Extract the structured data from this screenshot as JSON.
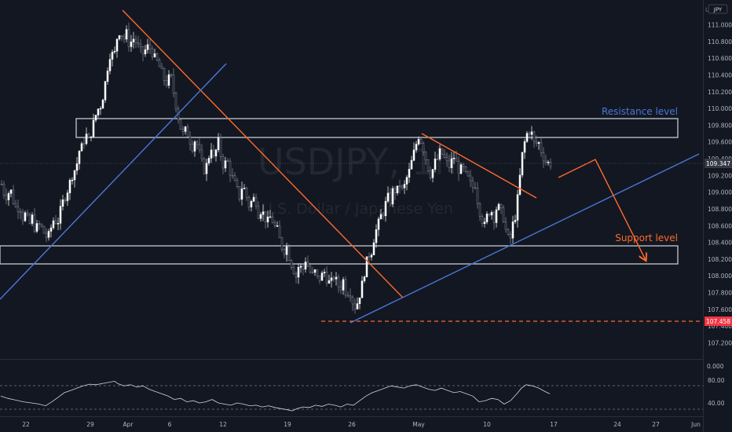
{
  "chart_data": {
    "type": "candlestick",
    "symbol_watermark": "USDJPY, 1h",
    "description_watermark": "U.S. Dollar / Japanese Yen",
    "currency": "JPY",
    "axis_mode": "L",
    "price_axis": {
      "ticks": [
        "111.000",
        "110.800",
        "110.600",
        "110.400",
        "110.200",
        "110.000",
        "109.800",
        "109.600",
        "109.400",
        "109.200",
        "109.000",
        "108.800",
        "108.600",
        "108.400",
        "108.200",
        "108.000",
        "107.800",
        "107.600",
        "107.400",
        "107.200"
      ],
      "range": [
        107.05,
        111.35
      ]
    },
    "time_axis": {
      "ticks": [
        "22",
        "29",
        "Apr",
        "6",
        "12",
        "19",
        "26",
        "May",
        "10",
        "17",
        "24",
        "27",
        "Jun"
      ]
    },
    "last_price": {
      "label": "109.347",
      "value": 109.347,
      "color": "#363a45"
    },
    "low_marker": {
      "label": "107.458",
      "value": 107.458,
      "color": "#f23645"
    },
    "annotations": {
      "resistance_label": "Resistance level",
      "support_label": "Support level",
      "resistance_zone": [
        109.66,
        109.89
      ],
      "support_zone": [
        108.14,
        108.36
      ],
      "resistance_color": "#4a78d8",
      "support_color": "#ff6a2b"
    },
    "price_path": [
      [
        1,
        109.1
      ],
      [
        4,
        109.0
      ],
      [
        8,
        108.95
      ],
      [
        12,
        109.05
      ],
      [
        16,
        108.9
      ],
      [
        20,
        108.8
      ],
      [
        24,
        108.85
      ],
      [
        28,
        108.7
      ],
      [
        32,
        108.75
      ],
      [
        36,
        108.6
      ],
      [
        40,
        108.7
      ],
      [
        44,
        108.55
      ],
      [
        48,
        108.62
      ],
      [
        52,
        108.58
      ],
      [
        56,
        108.5
      ],
      [
        60,
        108.45
      ],
      [
        64,
        108.58
      ],
      [
        68,
        108.7
      ],
      [
        72,
        108.62
      ],
      [
        76,
        108.78
      ],
      [
        80,
        108.92
      ],
      [
        84,
        109.0
      ],
      [
        88,
        109.12
      ],
      [
        92,
        109.24
      ],
      [
        96,
        109.3
      ],
      [
        100,
        109.5
      ],
      [
        104,
        109.55
      ],
      [
        108,
        109.7
      ],
      [
        112,
        109.62
      ],
      [
        116,
        109.75
      ],
      [
        120,
        109.9
      ],
      [
        124,
        110.0
      ],
      [
        128,
        110.05
      ],
      [
        132,
        110.25
      ],
      [
        136,
        110.5
      ],
      [
        140,
        110.7
      ],
      [
        144,
        110.6
      ],
      [
        148,
        110.85
      ],
      [
        152,
        110.95
      ],
      [
        156,
        110.82
      ],
      [
        160,
        110.9
      ],
      [
        164,
        110.75
      ],
      [
        168,
        110.85
      ],
      [
        172,
        110.8
      ],
      [
        176,
        110.72
      ],
      [
        180,
        110.65
      ],
      [
        184,
        110.7
      ],
      [
        188,
        110.75
      ],
      [
        192,
        110.7
      ],
      [
        196,
        110.6
      ],
      [
        200,
        110.55
      ],
      [
        204,
        110.45
      ],
      [
        208,
        110.35
      ],
      [
        212,
        110.3
      ],
      [
        216,
        110.42
      ],
      [
        220,
        110.2
      ],
      [
        224,
        110.0
      ],
      [
        228,
        109.8
      ],
      [
        232,
        109.7
      ],
      [
        236,
        109.75
      ],
      [
        240,
        109.65
      ],
      [
        244,
        109.55
      ],
      [
        248,
        109.65
      ],
      [
        252,
        109.5
      ],
      [
        256,
        109.35
      ],
      [
        260,
        109.25
      ],
      [
        264,
        109.4
      ],
      [
        268,
        109.55
      ],
      [
        272,
        109.35
      ],
      [
        276,
        109.65
      ],
      [
        280,
        109.45
      ],
      [
        284,
        109.3
      ],
      [
        288,
        109.4
      ],
      [
        292,
        109.25
      ],
      [
        296,
        109.15
      ],
      [
        300,
        109.05
      ],
      [
        304,
        108.95
      ],
      [
        308,
        109.1
      ],
      [
        312,
        108.98
      ],
      [
        316,
        108.85
      ],
      [
        320,
        108.9
      ],
      [
        324,
        108.95
      ],
      [
        328,
        108.75
      ],
      [
        332,
        108.8
      ],
      [
        336,
        108.7
      ],
      [
        340,
        108.65
      ],
      [
        344,
        108.72
      ],
      [
        348,
        108.6
      ],
      [
        352,
        108.55
      ],
      [
        356,
        108.4
      ],
      [
        360,
        108.3
      ],
      [
        364,
        108.35
      ],
      [
        368,
        108.2
      ],
      [
        372,
        108.1
      ],
      [
        376,
        108.0
      ],
      [
        380,
        108.15
      ],
      [
        384,
        108.05
      ],
      [
        388,
        108.2
      ],
      [
        392,
        108.1
      ],
      [
        396,
        108.0
      ],
      [
        400,
        108.05
      ],
      [
        404,
        107.95
      ],
      [
        408,
        108.0
      ],
      [
        412,
        108.05
      ],
      [
        416,
        107.95
      ],
      [
        420,
        107.9
      ],
      [
        424,
        108.0
      ],
      [
        428,
        107.92
      ],
      [
        432,
        107.85
      ],
      [
        436,
        107.95
      ],
      [
        440,
        107.78
      ],
      [
        444,
        107.85
      ],
      [
        448,
        107.7
      ],
      [
        452,
        107.62
      ],
      [
        456,
        107.75
      ],
      [
        460,
        107.9
      ],
      [
        464,
        108.1
      ],
      [
        468,
        108.25
      ],
      [
        472,
        108.3
      ],
      [
        476,
        108.5
      ],
      [
        480,
        108.6
      ],
      [
        484,
        108.72
      ],
      [
        488,
        108.78
      ],
      [
        492,
        108.95
      ],
      [
        496,
        108.9
      ],
      [
        500,
        109.05
      ],
      [
        504,
        109.0
      ],
      [
        508,
        109.1
      ],
      [
        512,
        109.0
      ],
      [
        516,
        109.15
      ],
      [
        520,
        109.25
      ],
      [
        524,
        109.4
      ],
      [
        528,
        109.55
      ],
      [
        532,
        109.68
      ],
      [
        536,
        109.6
      ],
      [
        540,
        109.45
      ],
      [
        544,
        109.3
      ],
      [
        548,
        109.2
      ],
      [
        552,
        109.35
      ],
      [
        556,
        109.4
      ],
      [
        560,
        109.5
      ],
      [
        564,
        109.42
      ],
      [
        568,
        109.35
      ],
      [
        572,
        109.3
      ],
      [
        576,
        109.45
      ],
      [
        580,
        109.35
      ],
      [
        584,
        109.25
      ],
      [
        588,
        109.3
      ],
      [
        592,
        109.2
      ],
      [
        596,
        109.15
      ],
      [
        600,
        109.05
      ],
      [
        604,
        109.1
      ],
      [
        608,
        108.85
      ],
      [
        612,
        108.7
      ],
      [
        616,
        108.6
      ],
      [
        620,
        108.75
      ],
      [
        624,
        108.8
      ],
      [
        628,
        108.7
      ],
      [
        632,
        108.85
      ],
      [
        636,
        108.78
      ],
      [
        640,
        108.7
      ],
      [
        644,
        108.5
      ],
      [
        648,
        108.4
      ],
      [
        652,
        108.62
      ],
      [
        656,
        108.75
      ],
      [
        660,
        109.1
      ],
      [
        664,
        109.45
      ],
      [
        668,
        109.65
      ],
      [
        672,
        109.75
      ],
      [
        676,
        109.7
      ],
      [
        680,
        109.55
      ],
      [
        684,
        109.62
      ],
      [
        688,
        109.5
      ],
      [
        692,
        109.4
      ],
      [
        696,
        109.35
      ],
      [
        700,
        109.35
      ]
    ],
    "rsi": {
      "ticks": [
        "80.00",
        "40.00"
      ],
      "levels": [
        70,
        30
      ],
      "path": [
        [
          1,
          52
        ],
        [
          10,
          48
        ],
        [
          20,
          45
        ],
        [
          30,
          42
        ],
        [
          40,
          40
        ],
        [
          50,
          38
        ],
        [
          58,
          35
        ],
        [
          66,
          42
        ],
        [
          74,
          50
        ],
        [
          82,
          58
        ],
        [
          90,
          62
        ],
        [
          98,
          66
        ],
        [
          106,
          70
        ],
        [
          114,
          73
        ],
        [
          122,
          72
        ],
        [
          130,
          74
        ],
        [
          138,
          76
        ],
        [
          146,
          78
        ],
        [
          150,
          74
        ],
        [
          158,
          70
        ],
        [
          166,
          72
        ],
        [
          174,
          68
        ],
        [
          182,
          70
        ],
        [
          190,
          64
        ],
        [
          198,
          60
        ],
        [
          206,
          56
        ],
        [
          214,
          52
        ],
        [
          222,
          46
        ],
        [
          230,
          48
        ],
        [
          238,
          42
        ],
        [
          246,
          44
        ],
        [
          254,
          40
        ],
        [
          262,
          42
        ],
        [
          270,
          46
        ],
        [
          278,
          40
        ],
        [
          286,
          38
        ],
        [
          294,
          36
        ],
        [
          302,
          40
        ],
        [
          310,
          38
        ],
        [
          318,
          35
        ],
        [
          326,
          36
        ],
        [
          334,
          33
        ],
        [
          342,
          35
        ],
        [
          350,
          32
        ],
        [
          358,
          30
        ],
        [
          366,
          28
        ],
        [
          372,
          26
        ],
        [
          378,
          30
        ],
        [
          386,
          33
        ],
        [
          394,
          32
        ],
        [
          402,
          36
        ],
        [
          410,
          34
        ],
        [
          418,
          38
        ],
        [
          426,
          36
        ],
        [
          434,
          33
        ],
        [
          442,
          38
        ],
        [
          450,
          36
        ],
        [
          458,
          44
        ],
        [
          466,
          52
        ],
        [
          474,
          58
        ],
        [
          482,
          62
        ],
        [
          490,
          66
        ],
        [
          498,
          70
        ],
        [
          506,
          68
        ],
        [
          514,
          66
        ],
        [
          522,
          70
        ],
        [
          530,
          72
        ],
        [
          538,
          68
        ],
        [
          546,
          64
        ],
        [
          554,
          62
        ],
        [
          562,
          66
        ],
        [
          570,
          62
        ],
        [
          578,
          58
        ],
        [
          586,
          60
        ],
        [
          594,
          56
        ],
        [
          602,
          52
        ],
        [
          610,
          42
        ],
        [
          618,
          44
        ],
        [
          626,
          48
        ],
        [
          634,
          46
        ],
        [
          642,
          38
        ],
        [
          650,
          44
        ],
        [
          658,
          56
        ],
        [
          664,
          66
        ],
        [
          670,
          72
        ],
        [
          678,
          70
        ],
        [
          686,
          66
        ],
        [
          694,
          60
        ],
        [
          700,
          56
        ]
      ]
    }
  }
}
